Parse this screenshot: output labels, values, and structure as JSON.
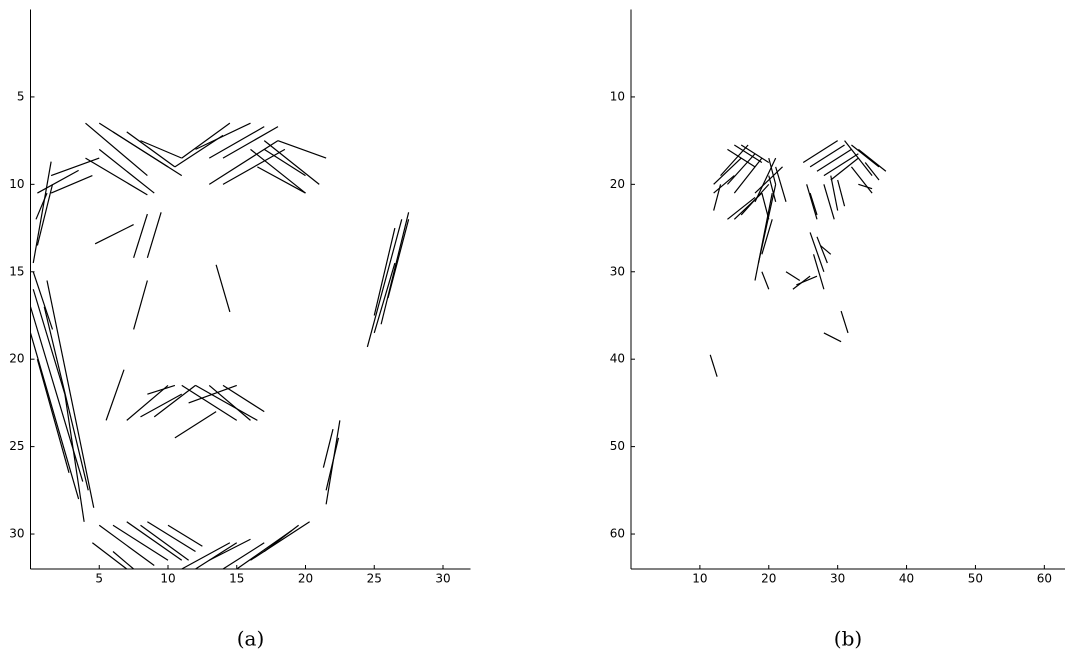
{
  "chart_data": [
    {
      "type": "segments",
      "caption": "(a)",
      "color": "#000000",
      "xlim": [
        0,
        32
      ],
      "ylim": [
        0,
        32
      ],
      "y_inverted": true,
      "xticks": [
        5,
        10,
        15,
        20,
        25,
        30
      ],
      "yticks": [
        5,
        10,
        15,
        20,
        25,
        30
      ],
      "segments": [
        [
          0.2,
          15,
          1.6,
          18.3
        ],
        [
          0.2,
          16,
          2.5,
          22
        ],
        [
          0,
          17,
          3.8,
          27
        ],
        [
          0,
          18.5,
          3.5,
          28
        ],
        [
          0.5,
          20,
          2.8,
          26.5
        ],
        [
          1.2,
          15.5,
          4.6,
          28.5
        ],
        [
          1,
          17,
          4.2,
          27.5
        ],
        [
          2.5,
          22,
          3.9,
          29.3
        ],
        [
          0.2,
          14.5,
          1.5,
          8.7
        ],
        [
          0.5,
          13.5,
          1.6,
          10
        ],
        [
          0.4,
          12,
          1.2,
          10.5
        ],
        [
          0.5,
          10.5,
          3.5,
          9.2
        ],
        [
          1.5,
          10.5,
          4.5,
          9.5
        ],
        [
          1.5,
          9.5,
          5,
          8.5
        ],
        [
          4,
          6.5,
          8.5,
          9.5
        ],
        [
          5,
          6.5,
          10,
          9
        ],
        [
          6,
          7,
          11,
          9.5
        ],
        [
          7,
          7,
          10.5,
          9
        ],
        [
          4,
          8.5,
          8.5,
          10.6
        ],
        [
          5,
          8,
          9,
          10.5
        ],
        [
          8,
          7.5,
          11,
          8.5
        ],
        [
          11,
          8.5,
          14.5,
          6.5
        ],
        [
          12,
          8,
          16,
          6.5
        ],
        [
          13,
          8.5,
          17,
          6.7
        ],
        [
          14,
          8.5,
          18,
          6.7
        ],
        [
          10.5,
          9,
          14,
          7.2
        ],
        [
          13,
          10,
          18,
          7.5
        ],
        [
          14,
          10,
          18.5,
          8
        ],
        [
          16,
          8,
          20,
          10.5
        ],
        [
          17,
          7.5,
          21,
          10
        ],
        [
          18,
          7.5,
          21.5,
          8.5
        ],
        [
          17,
          8,
          20,
          9.5
        ],
        [
          16.5,
          9,
          20,
          10.5
        ],
        [
          4.7,
          13.4,
          7.5,
          12.3
        ],
        [
          7.5,
          14.2,
          8.5,
          11.7
        ],
        [
          8.5,
          14.2,
          9.5,
          11.6
        ],
        [
          7.5,
          18.3,
          8.5,
          15.5
        ],
        [
          13.5,
          14.6,
          14.5,
          17.3
        ],
        [
          24.5,
          19.3,
          27,
          12
        ],
        [
          25,
          17.5,
          26.5,
          12.5
        ],
        [
          25.5,
          18,
          27.5,
          11.6
        ],
        [
          26,
          16.5,
          27.5,
          12
        ],
        [
          25,
          18.5,
          26.5,
          14.5
        ],
        [
          5.5,
          23.5,
          6.8,
          20.6
        ],
        [
          7,
          23.5,
          10,
          21.5
        ],
        [
          8,
          23.3,
          11,
          22
        ],
        [
          9,
          23.3,
          12,
          21.5
        ],
        [
          10.5,
          24.5,
          13.5,
          23
        ],
        [
          11.5,
          22.5,
          15,
          21.5
        ],
        [
          11,
          21.5,
          15,
          23.5
        ],
        [
          12,
          21.5,
          16.5,
          23.5
        ],
        [
          13,
          21.5,
          16,
          23.5
        ],
        [
          14,
          21.5,
          17,
          23
        ],
        [
          8.5,
          22,
          10.5,
          21.5
        ],
        [
          21.5,
          28.3,
          22.5,
          23.5
        ],
        [
          21.5,
          27.5,
          22.4,
          24.5
        ],
        [
          21.3,
          26.2,
          22,
          24
        ],
        [
          5,
          29.5,
          9,
          31.8
        ],
        [
          6,
          29.5,
          10,
          31.5
        ],
        [
          7,
          29.3,
          11,
          31.5
        ],
        [
          8.5,
          29.3,
          12,
          31
        ],
        [
          10,
          29.5,
          12.5,
          30.7
        ],
        [
          4.5,
          30.5,
          7,
          32
        ],
        [
          6,
          31,
          7.5,
          32
        ],
        [
          8,
          29.5,
          11.5,
          31.5
        ],
        [
          11,
          32,
          14.5,
          30.5
        ],
        [
          12,
          32,
          15,
          30.5
        ],
        [
          14,
          32,
          17,
          30.5
        ],
        [
          15,
          32,
          19,
          29.8
        ],
        [
          16,
          31.5,
          20.3,
          29.3
        ],
        [
          13,
          31.5,
          16,
          30.3
        ],
        [
          17,
          31,
          19.5,
          29.5
        ]
      ]
    },
    {
      "type": "segments",
      "caption": "(b)",
      "color": "#000000",
      "xlim": [
        0,
        63
      ],
      "ylim": [
        0,
        64
      ],
      "y_inverted": true,
      "xticks": [
        10,
        20,
        30,
        40,
        50,
        60
      ],
      "yticks": [
        10,
        20,
        30,
        40,
        50,
        60
      ],
      "segments": [
        [
          13,
          19,
          17,
          15.5
        ],
        [
          14,
          20,
          18,
          16.5
        ],
        [
          12,
          20,
          16,
          17
        ],
        [
          12,
          21,
          15,
          19
        ],
        [
          15,
          21,
          19,
          17
        ],
        [
          15,
          24,
          19,
          21
        ],
        [
          14,
          24,
          18,
          21.5
        ],
        [
          16,
          23.5,
          20,
          20
        ],
        [
          18,
          22,
          21,
          17
        ],
        [
          18,
          21,
          22,
          18
        ],
        [
          14,
          16,
          18,
          18
        ],
        [
          15,
          15.5,
          19,
          17.5
        ],
        [
          16,
          15.5,
          20,
          17.5
        ],
        [
          12,
          23,
          13,
          20
        ],
        [
          25,
          17.5,
          30,
          15
        ],
        [
          26,
          18,
          31,
          15.5
        ],
        [
          27,
          18.5,
          32,
          16
        ],
        [
          28,
          19,
          33,
          16.5
        ],
        [
          29,
          19.5,
          33,
          17
        ],
        [
          31,
          15,
          35,
          19
        ],
        [
          32,
          15.5,
          36,
          18
        ],
        [
          33,
          16,
          37,
          18.5
        ],
        [
          34,
          17.5,
          36,
          19.5
        ],
        [
          32,
          18,
          35,
          21
        ],
        [
          33,
          20,
          35,
          20.5
        ],
        [
          20,
          17,
          21,
          20
        ],
        [
          21,
          18,
          22.5,
          22
        ],
        [
          20,
          19,
          21,
          22
        ],
        [
          19,
          21,
          20,
          24
        ],
        [
          25.5,
          20,
          27,
          24
        ],
        [
          26,
          21,
          27,
          23.5
        ],
        [
          29,
          19,
          30,
          23
        ],
        [
          30,
          19.5,
          31,
          22.5
        ],
        [
          28,
          20,
          29.5,
          24
        ],
        [
          18,
          31,
          20.5,
          21
        ],
        [
          18.5,
          29,
          21,
          20
        ],
        [
          19,
          28,
          20.5,
          24
        ],
        [
          19,
          30,
          20,
          32
        ],
        [
          26,
          25.5,
          28,
          30
        ],
        [
          27,
          26,
          28.5,
          29
        ],
        [
          27.5,
          27,
          29,
          28
        ],
        [
          26.5,
          28,
          28,
          32
        ],
        [
          22.5,
          30,
          24.5,
          31
        ],
        [
          23.5,
          32,
          26,
          30.5
        ],
        [
          24,
          31.5,
          27,
          30.5
        ],
        [
          28,
          37,
          30.5,
          38
        ],
        [
          30.5,
          34.5,
          31.5,
          37
        ],
        [
          11.5,
          39.5,
          12.5,
          42
        ]
      ]
    }
  ]
}
